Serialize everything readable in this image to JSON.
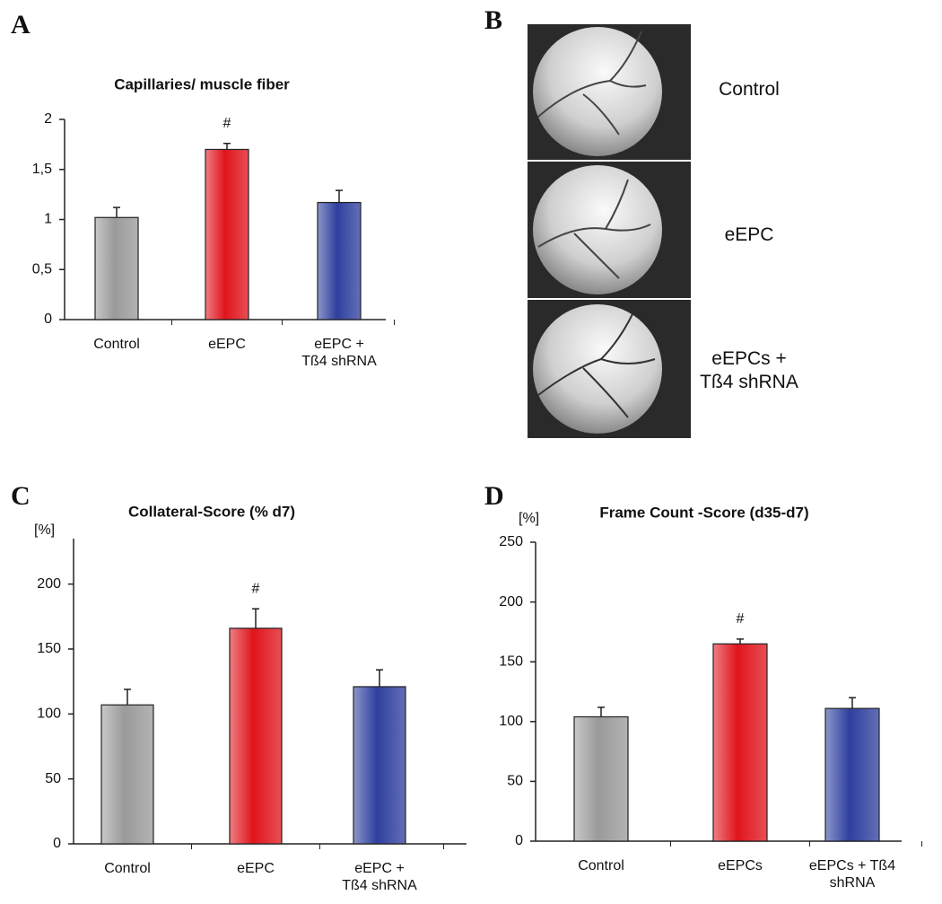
{
  "chart_data": [
    {
      "type": "bar",
      "panel": "A",
      "title": "Capillaries/ muscle fiber",
      "categories": [
        "Control",
        "eEPC",
        "eEPC +\nTß4 shRNA"
      ],
      "values": [
        1.02,
        1.7,
        1.17
      ],
      "errors": [
        0.1,
        0.06,
        0.12
      ],
      "colors": [
        "#9a9a9a",
        "#e0141c",
        "#2e3f9e"
      ],
      "annotations": [
        null,
        "#",
        null
      ],
      "ylim": [
        0,
        2
      ],
      "yticks": [
        0,
        {
          "value": 0.5,
          "label": "0,5"
        },
        1,
        {
          "value": 1.5,
          "label": "1,5"
        },
        2
      ]
    },
    {
      "type": "bar",
      "panel": "C",
      "title": "Collateral-Score (% d7)",
      "ylabel": "[%]",
      "categories": [
        "Control",
        "eEPC",
        "eEPC +\nTß4 shRNA"
      ],
      "values": [
        107,
        166,
        121
      ],
      "errors": [
        12,
        15,
        13
      ],
      "colors": [
        "#9a9a9a",
        "#e0141c",
        "#2e3f9e"
      ],
      "annotations": [
        null,
        "#",
        null
      ],
      "ylim": [
        0,
        235
      ],
      "yticks": [
        0,
        50,
        100,
        150,
        200
      ]
    },
    {
      "type": "bar",
      "panel": "D",
      "title": "Frame Count -Score (d35-d7)",
      "ylabel": "[%]",
      "categories": [
        "Control",
        "eEPCs",
        "eEPCs + Tß4\nshRNA"
      ],
      "values": [
        104,
        165,
        111
      ],
      "errors": [
        8,
        4,
        9
      ],
      "colors": [
        "#9a9a9a",
        "#e0141c",
        "#2e3f9e"
      ],
      "annotations": [
        null,
        "#",
        null
      ],
      "ylim": [
        0,
        250
      ],
      "yticks": [
        0,
        50,
        100,
        150,
        200,
        250
      ]
    }
  ],
  "angiograms": {
    "panel": "B",
    "labels": [
      "Control",
      "eEPC",
      "eEPCs +\nTß4 shRNA"
    ]
  }
}
